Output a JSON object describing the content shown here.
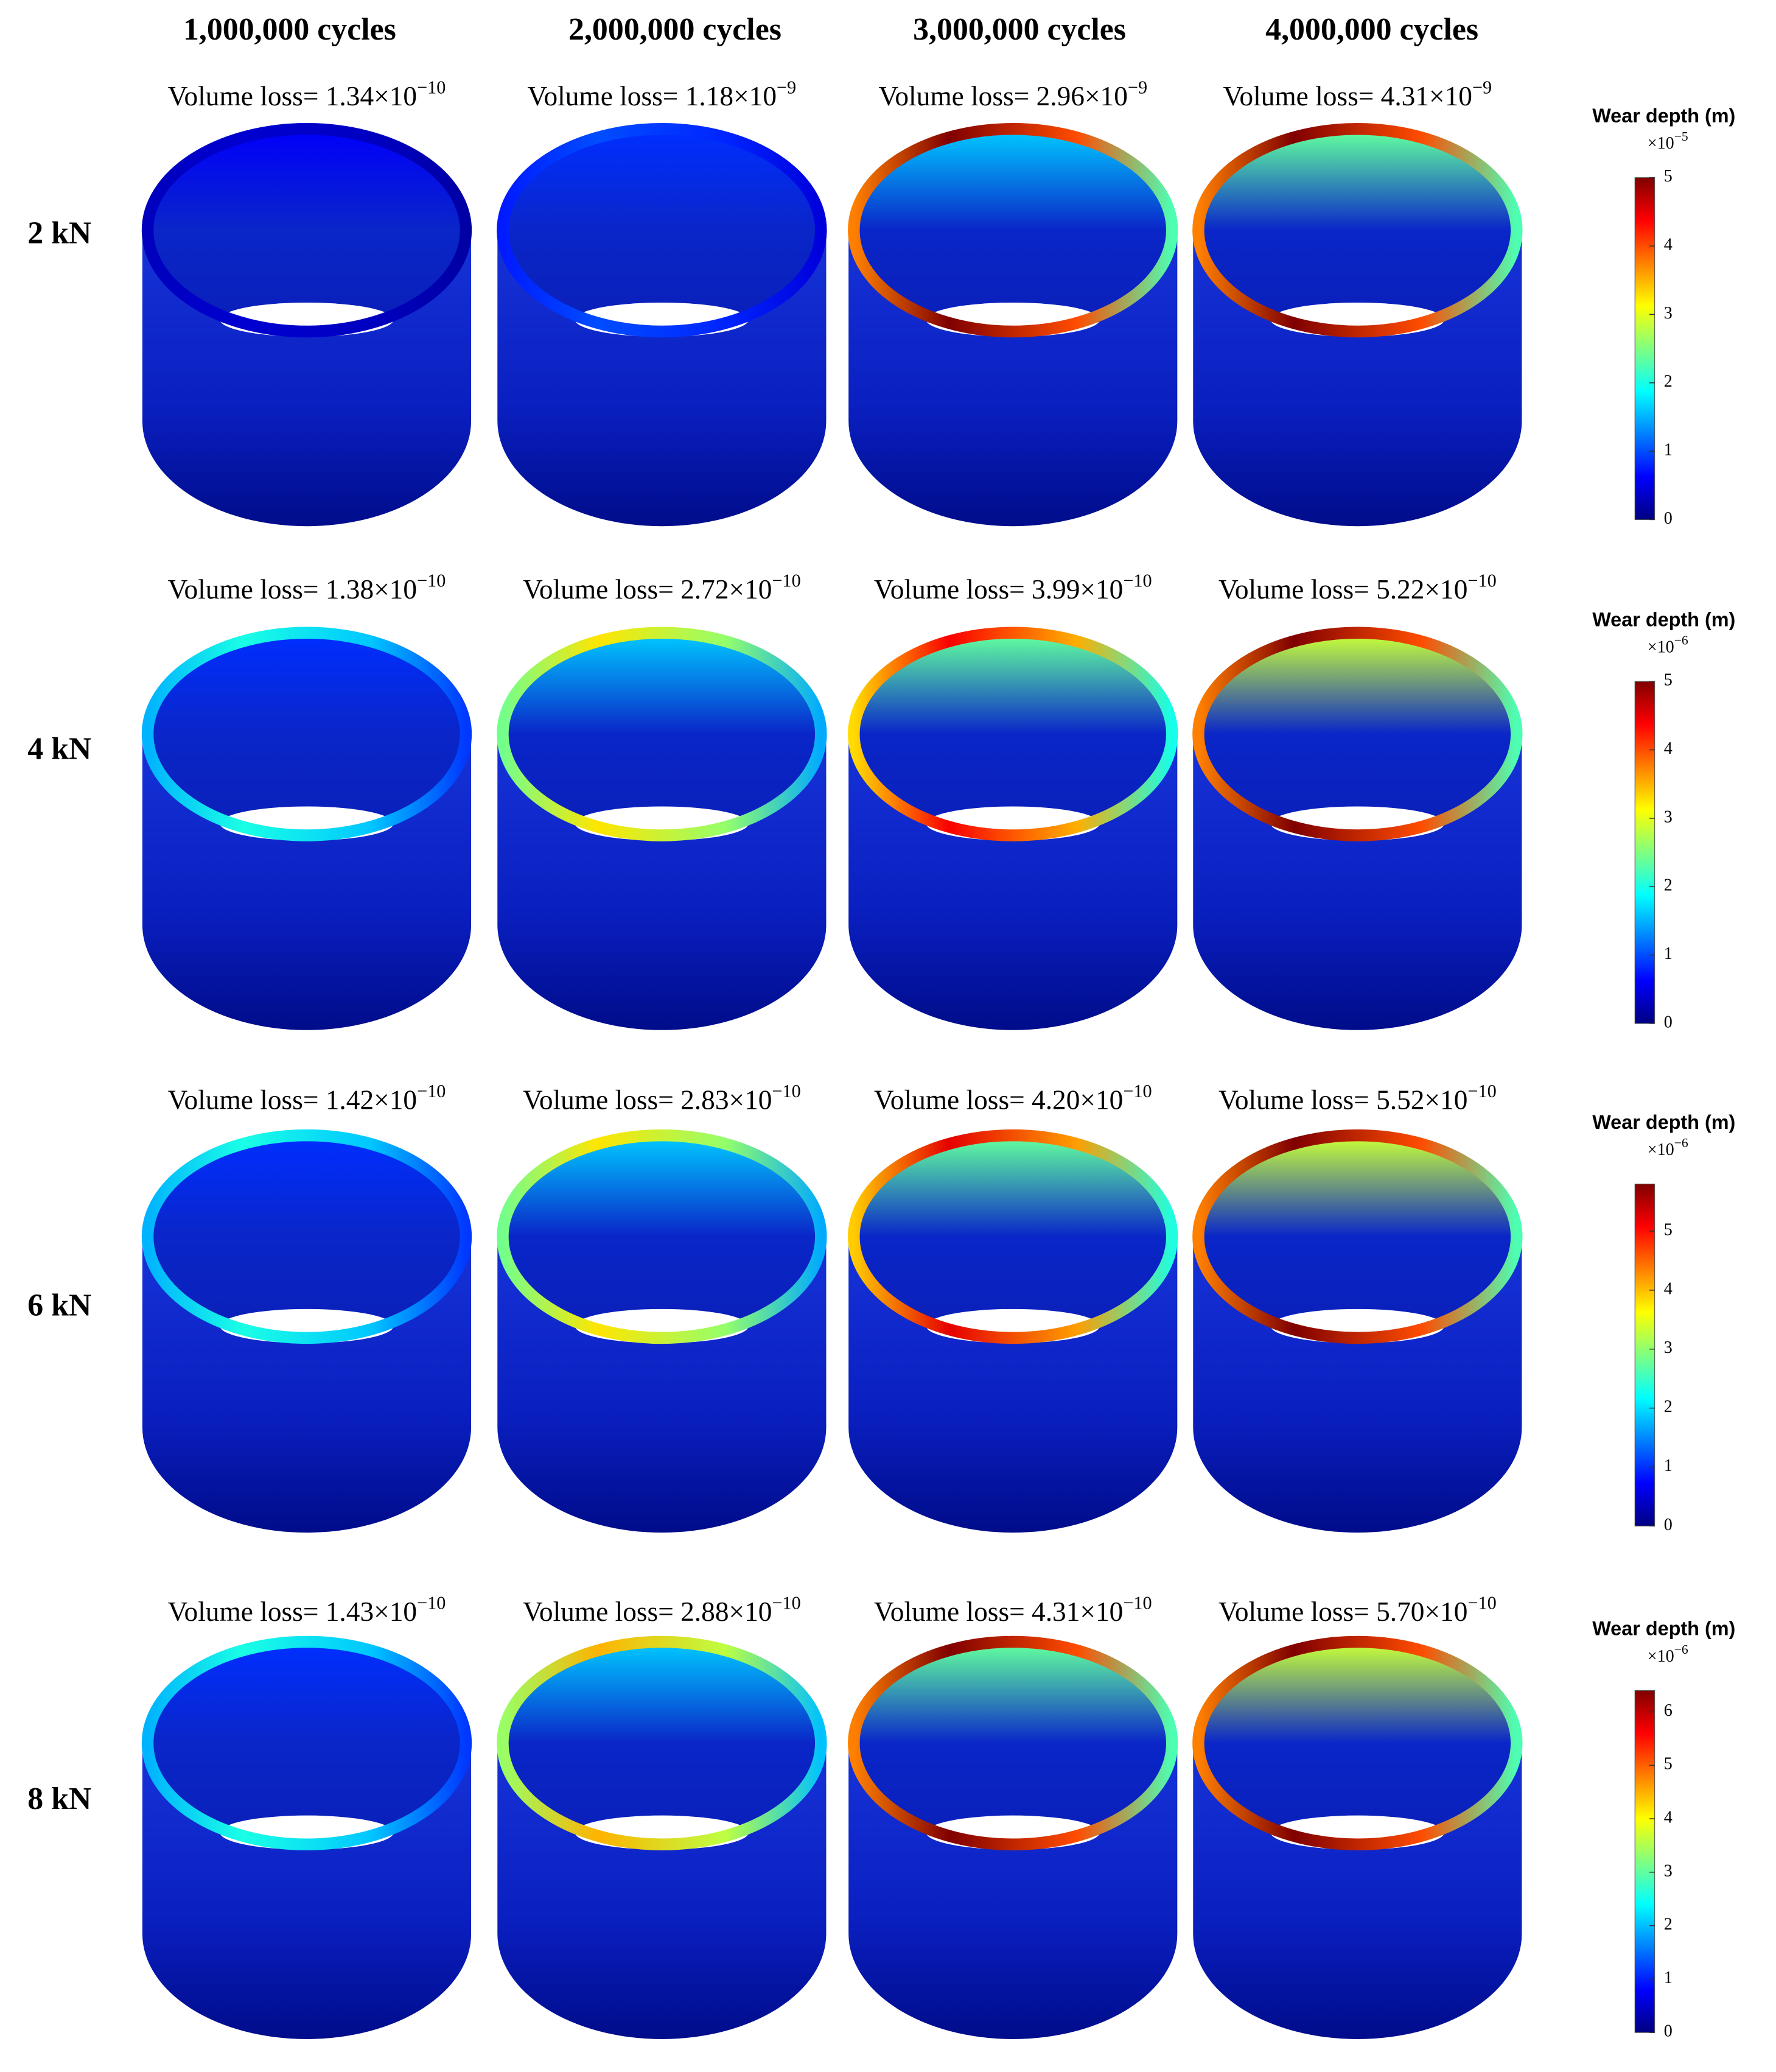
{
  "column_headers": [
    "1,000,000 cycles",
    "2,000,000 cycles",
    "3,000,000 cycles",
    "4,000,000 cycles"
  ],
  "rows": [
    {
      "label": "2 kN",
      "panels": [
        {
          "text": "Volume loss= 1.34×10",
          "exponent": "−10"
        },
        {
          "text": "Volume loss= 1.18×10",
          "exponent": "−9"
        },
        {
          "text": "Volume loss= 2.96×10",
          "exponent": "−9"
        },
        {
          "text": "Volume loss= 4.31×10",
          "exponent": "−9"
        }
      ],
      "colorbar": {
        "title": "Wear depth (m)",
        "multiplier": "×10",
        "exponent": "−5",
        "ylim": [
          0,
          5
        ],
        "yticks": [
          0,
          1,
          2,
          3,
          4,
          5
        ]
      }
    },
    {
      "label": "4 kN",
      "panels": [
        {
          "text": "Volume loss= 1.38×10",
          "exponent": "−10"
        },
        {
          "text": "Volume loss= 2.72×10",
          "exponent": "−10"
        },
        {
          "text": "Volume loss= 3.99×10",
          "exponent": "−10"
        },
        {
          "text": "Volume loss= 5.22×10",
          "exponent": "−10"
        }
      ],
      "colorbar": {
        "title": "Wear depth (m)",
        "multiplier": "×10",
        "exponent": "−6",
        "ylim": [
          0,
          5
        ],
        "yticks": [
          0,
          1,
          2,
          3,
          4,
          5
        ]
      }
    },
    {
      "label": "6 kN",
      "panels": [
        {
          "text": "Volume loss= 1.42×10",
          "exponent": "−10"
        },
        {
          "text": "Volume loss= 2.83×10",
          "exponent": "−10"
        },
        {
          "text": "Volume loss= 4.20×10",
          "exponent": "−10"
        },
        {
          "text": "Volume loss= 5.52×10",
          "exponent": "−10"
        }
      ],
      "colorbar": {
        "title": "Wear depth (m)",
        "multiplier": "×10",
        "exponent": "−6",
        "ylim": [
          0,
          5.8
        ],
        "yticks": [
          0,
          1,
          2,
          3,
          4,
          5
        ]
      }
    },
    {
      "label": "8 kN",
      "panels": [
        {
          "text": "Volume loss= 1.43×10",
          "exponent": "−10"
        },
        {
          "text": "Volume loss= 2.88×10",
          "exponent": "−10"
        },
        {
          "text": "Volume loss= 4.31×10",
          "exponent": "−10"
        },
        {
          "text": "Volume loss= 5.70×10",
          "exponent": "−10"
        }
      ],
      "colorbar": {
        "title": "Wear depth (m)",
        "multiplier": "×10",
        "exponent": "−6",
        "ylim": [
          0,
          6.4
        ],
        "yticks": [
          0,
          1,
          2,
          3,
          4,
          5,
          6
        ]
      }
    }
  ]
}
